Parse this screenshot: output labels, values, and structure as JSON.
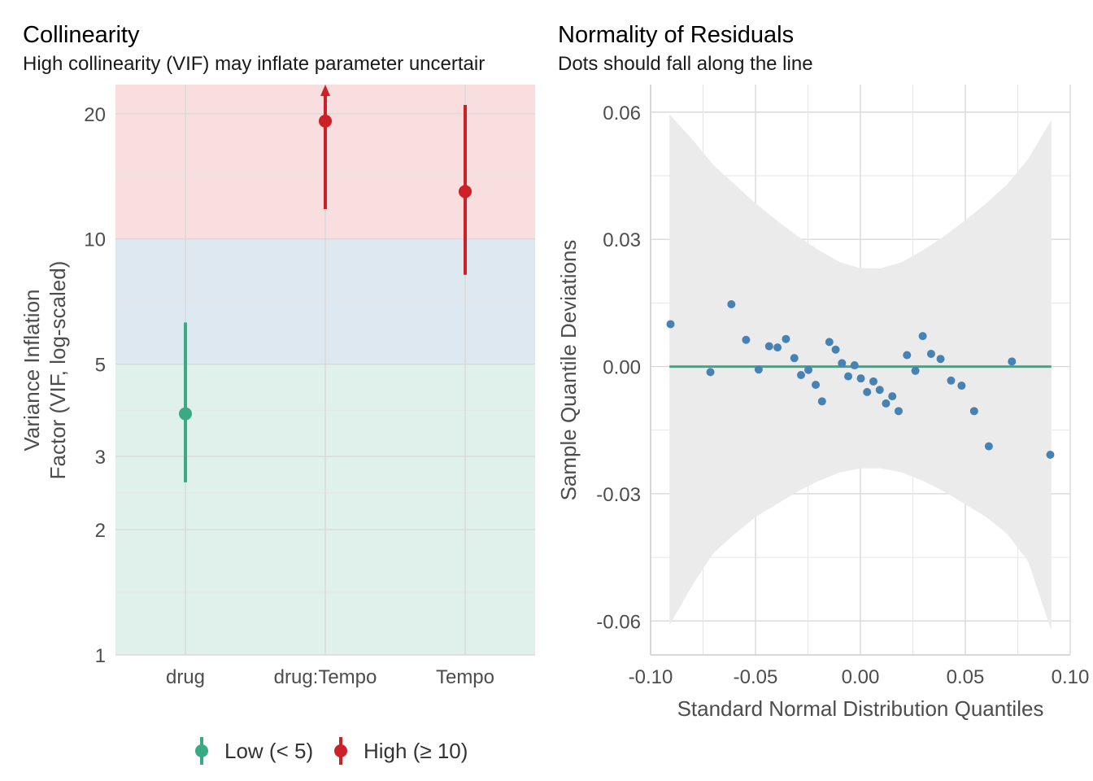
{
  "chart_data": [
    {
      "type": "scatter",
      "title": "Collinearity",
      "subtitle": "High collinearity (VIF) may inflate parameter uncertair",
      "ylabel_lines": [
        "Variance Inflation",
        "Factor (VIF, log-scaled)"
      ],
      "ylog": true,
      "ylim": [
        1,
        23.5
      ],
      "yticks": [
        1,
        2,
        3,
        5,
        10,
        20
      ],
      "categories": [
        "drug",
        "drug:Tempo",
        "Tempo"
      ],
      "bands": [
        {
          "from": 1,
          "to": 5,
          "color": "#e0f0ea"
        },
        {
          "from": 5,
          "to": 10,
          "color": "#dde8f0"
        },
        {
          "from": 10,
          "to": 23.5,
          "color": "#f9dee0"
        }
      ],
      "points": [
        {
          "category": "drug",
          "vif": 3.8,
          "ci_low": 2.6,
          "ci_high": 6.3,
          "group": "Low (< 5)"
        },
        {
          "category": "drug:Tempo",
          "vif": 19.2,
          "ci_low": 11.8,
          "ci_high": 23.5,
          "group": "High (≥ 10)",
          "ci_clipped": true
        },
        {
          "category": "Tempo",
          "vif": 13.0,
          "ci_low": 8.2,
          "ci_high": 21.0,
          "group": "High (≥ 10)"
        }
      ],
      "legend": {
        "placement": "bottom",
        "items": [
          {
            "label": "Low (< 5)",
            "color": "#3aaa84"
          },
          {
            "label": "High (≥ 10)",
            "color": "#cd2027"
          }
        ]
      },
      "grid": true
    },
    {
      "type": "scatter",
      "title": "Normality of Residuals",
      "subtitle": "Dots should fall along the line",
      "xlabel": "Standard Normal Distribution Quantiles",
      "ylabel": "Sample Quantile Deviations",
      "xlim": [
        -0.1,
        0.1
      ],
      "ylim": [
        -0.068,
        0.0665
      ],
      "xticks": [
        -0.1,
        -0.05,
        0.0,
        0.05,
        0.1
      ],
      "xtick_labels": [
        "-0.10",
        "-0.05",
        "0.00",
        "0.05",
        "0.10"
      ],
      "yticks": [
        -0.06,
        -0.03,
        0.0,
        0.03,
        0.06
      ],
      "ytick_labels": [
        "-0.06",
        "-0.03",
        "0.00",
        "0.03",
        "0.06"
      ],
      "reference_line": {
        "y": 0,
        "x_from": -0.091,
        "x_to": 0.091,
        "color": "#3aaa84"
      },
      "band": {
        "color": "#ebebeb",
        "x": [
          -0.091,
          -0.08,
          -0.07,
          -0.06,
          -0.05,
          -0.04,
          -0.03,
          -0.02,
          -0.01,
          0.0,
          0.01,
          0.02,
          0.03,
          0.04,
          0.05,
          0.06,
          0.07,
          0.08,
          0.091
        ],
        "upper": [
          0.0595,
          0.0535,
          0.0475,
          0.043,
          0.0385,
          0.0345,
          0.0308,
          0.0275,
          0.0247,
          0.0232,
          0.0232,
          0.0247,
          0.0275,
          0.0308,
          0.0345,
          0.0385,
          0.043,
          0.049,
          0.0582
        ],
        "lower": [
          -0.061,
          -0.0515,
          -0.044,
          -0.0395,
          -0.0355,
          -0.0325,
          -0.0295,
          -0.027,
          -0.025,
          -0.024,
          -0.024,
          -0.025,
          -0.027,
          -0.0295,
          -0.0325,
          -0.0355,
          -0.0395,
          -0.046,
          -0.0623
        ]
      },
      "point_color": "#4682b4",
      "points": [
        {
          "x": -0.0905,
          "y": 0.01
        },
        {
          "x": -0.0715,
          "y": -0.0013
        },
        {
          "x": -0.0615,
          "y": 0.0147
        },
        {
          "x": -0.0545,
          "y": 0.0063
        },
        {
          "x": -0.0485,
          "y": -0.0007
        },
        {
          "x": -0.0435,
          "y": 0.0048
        },
        {
          "x": -0.0395,
          "y": 0.0045
        },
        {
          "x": -0.0355,
          "y": 0.0065
        },
        {
          "x": -0.0315,
          "y": 0.002
        },
        {
          "x": -0.0283,
          "y": -0.002
        },
        {
          "x": -0.0248,
          "y": -0.0008
        },
        {
          "x": -0.0213,
          "y": -0.0043
        },
        {
          "x": -0.0183,
          "y": -0.0082
        },
        {
          "x": -0.0148,
          "y": 0.0058
        },
        {
          "x": -0.0118,
          "y": 0.004
        },
        {
          "x": -0.0088,
          "y": 0.0008
        },
        {
          "x": -0.0058,
          "y": -0.0023
        },
        {
          "x": -0.0028,
          "y": 0.0003
        },
        {
          "x": 0.0002,
          "y": -0.0028
        },
        {
          "x": 0.0032,
          "y": -0.006
        },
        {
          "x": 0.0062,
          "y": -0.0035
        },
        {
          "x": 0.0092,
          "y": -0.0055
        },
        {
          "x": 0.0122,
          "y": -0.0087
        },
        {
          "x": 0.0152,
          "y": -0.007
        },
        {
          "x": 0.0182,
          "y": -0.0105
        },
        {
          "x": 0.0222,
          "y": 0.0027
        },
        {
          "x": 0.0262,
          "y": -0.001
        },
        {
          "x": 0.0297,
          "y": 0.0072
        },
        {
          "x": 0.0337,
          "y": 0.003
        },
        {
          "x": 0.0382,
          "y": 0.0018
        },
        {
          "x": 0.0432,
          "y": -0.0033
        },
        {
          "x": 0.0482,
          "y": -0.0045
        },
        {
          "x": 0.0542,
          "y": -0.0105
        },
        {
          "x": 0.0612,
          "y": -0.0188
        },
        {
          "x": 0.0722,
          "y": 0.0012
        },
        {
          "x": 0.0905,
          "y": -0.0208
        }
      ],
      "grid": true
    }
  ]
}
